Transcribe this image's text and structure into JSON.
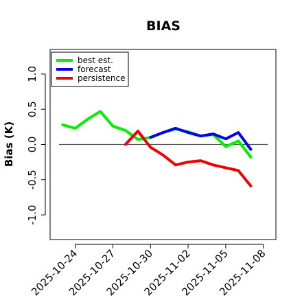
{
  "chart_data": {
    "type": "line",
    "title": "BIAS",
    "xlabel": "",
    "ylabel": "Bias (K)",
    "ylim": [
      -1.35,
      1.35
    ],
    "yticks": [
      -1.0,
      -0.5,
      0.0,
      0.5,
      1.0
    ],
    "ytick_labels": [
      "-1.0",
      "-0.5",
      "0.0",
      "0.5",
      "1.0"
    ],
    "xlim": [
      "2025-10-22",
      "2025-11-09"
    ],
    "xticks": [
      "2025-10-24",
      "2025-10-27",
      "2025-10-30",
      "2025-11-02",
      "2025-11-05",
      "2025-11-08"
    ],
    "highlighted_xtick": "2025-10-30",
    "highlight_color": "#228B22",
    "reference_line": 0.0,
    "grid": false,
    "legend_position": "top-left",
    "series": [
      {
        "name": "best est.",
        "color": "#00EE00",
        "x": [
          "2025-10-23",
          "2025-10-24",
          "2025-10-25",
          "2025-10-26",
          "2025-10-27",
          "2025-10-28",
          "2025-10-29",
          "2025-10-30",
          "2025-10-31",
          "2025-11-01",
          "2025-11-02",
          "2025-11-03",
          "2025-11-04",
          "2025-11-05",
          "2025-11-06",
          "2025-11-07"
        ],
        "y": [
          0.28,
          0.23,
          0.36,
          0.47,
          0.26,
          0.2,
          0.07,
          0.1,
          0.17,
          0.22,
          0.18,
          0.12,
          0.14,
          -0.03,
          0.05,
          -0.18
        ]
      },
      {
        "name": "forecast",
        "color": "#0000EE",
        "x": [
          "2025-10-30",
          "2025-10-31",
          "2025-11-01",
          "2025-11-02",
          "2025-11-03",
          "2025-11-04",
          "2025-11-05",
          "2025-11-06",
          "2025-11-07"
        ],
        "y": [
          0.1,
          0.17,
          0.23,
          0.17,
          0.12,
          0.15,
          0.08,
          0.17,
          -0.07
        ]
      },
      {
        "name": "persistence",
        "color": "#EE0000",
        "x": [
          "2025-10-28",
          "2025-10-29",
          "2025-10-30",
          "2025-10-31",
          "2025-11-01",
          "2025-11-02",
          "2025-11-03",
          "2025-11-04",
          "2025-11-05",
          "2025-11-06",
          "2025-11-07"
        ],
        "y": [
          0.0,
          0.19,
          -0.04,
          -0.15,
          -0.29,
          -0.25,
          -0.23,
          -0.29,
          -0.33,
          -0.37,
          -0.59
        ]
      }
    ]
  }
}
